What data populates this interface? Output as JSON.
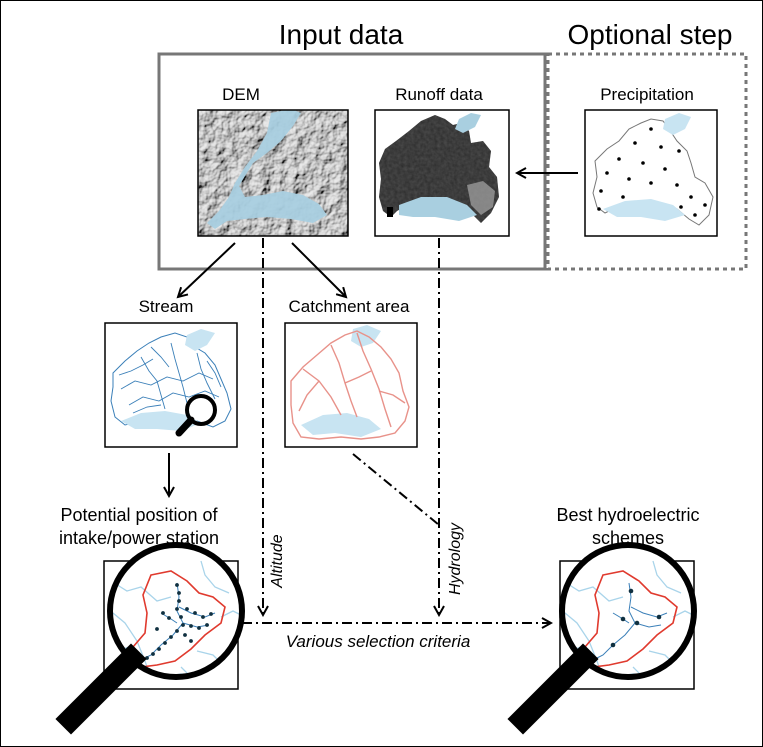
{
  "headings": {
    "input_data": "Input data",
    "optional_step": "Optional step"
  },
  "maps": {
    "dem": "DEM",
    "runoff": "Runoff data",
    "precipitation": "Precipitation",
    "stream": "Stream",
    "catchment": "Catchment area"
  },
  "results": {
    "potential_line1": "Potential position of",
    "potential_line2": "intake/power station",
    "best_line1": "Best hydroelectric",
    "best_line2": "schemes"
  },
  "edges": {
    "altitude": "Altitude",
    "hydrology": "Hydrology",
    "criteria": "Various selection criteria"
  },
  "colors": {
    "lake": "#c8e4f2",
    "boundary_red": "#e03a2e",
    "catchment_red": "#e8928a",
    "river_blue": "#3a7fb8",
    "optional_border": "#777777"
  }
}
